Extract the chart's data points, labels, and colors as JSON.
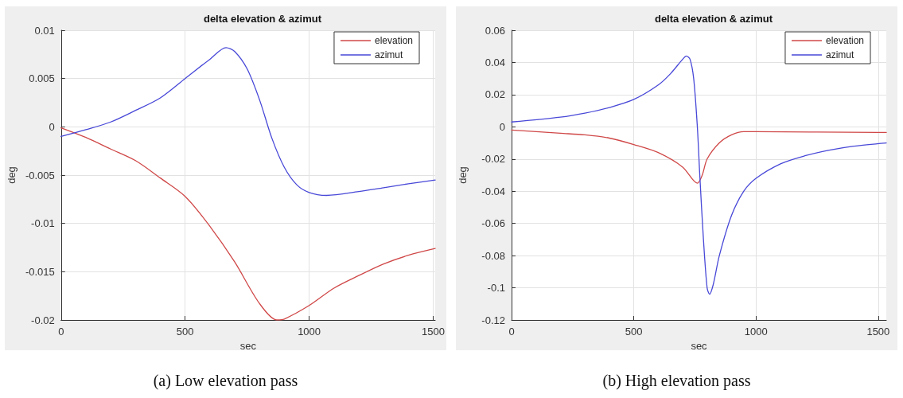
{
  "chart_data": [
    {
      "type": "line",
      "title": "delta elevation & azimut",
      "xlabel": "sec",
      "ylabel": "deg",
      "xlim": [
        0,
        1508
      ],
      "xticks": [
        0,
        500,
        1000,
        1500
      ],
      "ylim": [
        -0.02,
        0.01
      ],
      "yticks": [
        -0.02,
        -0.015,
        -0.01,
        -0.005,
        0,
        0.005,
        0.01
      ],
      "grid": true,
      "legend": "top right",
      "marker": "none",
      "line_style": "solid",
      "annotations": [
        "(a) Low elevation pass"
      ],
      "series": [
        {
          "name": "elevation",
          "color": "#d04848",
          "x": [
            0,
            100,
            200,
            300,
            400,
            500,
            600,
            700,
            800,
            870,
            900,
            1000,
            1100,
            1200,
            1300,
            1400,
            1508
          ],
          "values": [
            -0.0001,
            -0.0011,
            -0.0023,
            -0.0035,
            -0.0053,
            -0.0072,
            -0.0103,
            -0.014,
            -0.0183,
            -0.02,
            -0.0199,
            -0.0185,
            -0.0167,
            -0.0154,
            -0.0142,
            -0.0133,
            -0.0126
          ]
        },
        {
          "name": "azimut",
          "color": "#4848d8",
          "x": [
            0,
            100,
            200,
            300,
            400,
            500,
            600,
            665,
            700,
            750,
            800,
            850,
            900,
            950,
            1000,
            1070,
            1200,
            1300,
            1400,
            1508
          ],
          "values": [
            -0.001,
            -0.0003,
            0.0005,
            0.0017,
            0.003,
            0.005,
            0.007,
            0.0082,
            0.0078,
            0.006,
            0.0028,
            -0.0012,
            -0.0042,
            -0.006,
            -0.0068,
            -0.0071,
            -0.0067,
            -0.0063,
            -0.0059,
            -0.0055
          ]
        }
      ]
    },
    {
      "type": "line",
      "title": "delta elevation & azimut",
      "xlabel": "sec",
      "ylabel": "deg",
      "xlim": [
        0,
        1533
      ],
      "xticks": [
        0,
        500,
        1000,
        1500
      ],
      "ylim": [
        -0.12,
        0.06
      ],
      "yticks": [
        -0.12,
        -0.1,
        -0.08,
        -0.06,
        -0.04,
        -0.02,
        0,
        0.02,
        0.04,
        0.06
      ],
      "grid": true,
      "legend": "top right",
      "marker": "none",
      "line_style": "solid",
      "annotations": [
        "(b) High elevation pass"
      ],
      "series": [
        {
          "name": "elevation",
          "color": "#d04848",
          "x": [
            0,
            200,
            300,
            400,
            500,
            600,
            700,
            760,
            780,
            800,
            850,
            900,
            950,
            1000,
            1500,
            1533
          ],
          "values": [
            -0.002,
            -0.004,
            -0.005,
            -0.007,
            -0.011,
            -0.016,
            -0.025,
            -0.035,
            -0.03,
            -0.02,
            -0.01,
            -0.005,
            -0.003,
            -0.003,
            -0.0035,
            -0.0035
          ]
        },
        {
          "name": "azimut",
          "color": "#4848d8",
          "x": [
            0,
            200,
            300,
            400,
            500,
            600,
            650,
            700,
            715,
            730,
            745,
            760,
            770,
            785,
            800,
            810,
            825,
            850,
            900,
            950,
            1000,
            1100,
            1200,
            1300,
            1400,
            1533
          ],
          "values": [
            0.003,
            0.006,
            0.0085,
            0.012,
            0.017,
            0.026,
            0.033,
            0.042,
            0.044,
            0.042,
            0.03,
            0,
            -0.03,
            -0.07,
            -0.1,
            -0.104,
            -0.098,
            -0.08,
            -0.055,
            -0.04,
            -0.032,
            -0.023,
            -0.018,
            -0.0145,
            -0.012,
            -0.01
          ]
        }
      ]
    }
  ]
}
